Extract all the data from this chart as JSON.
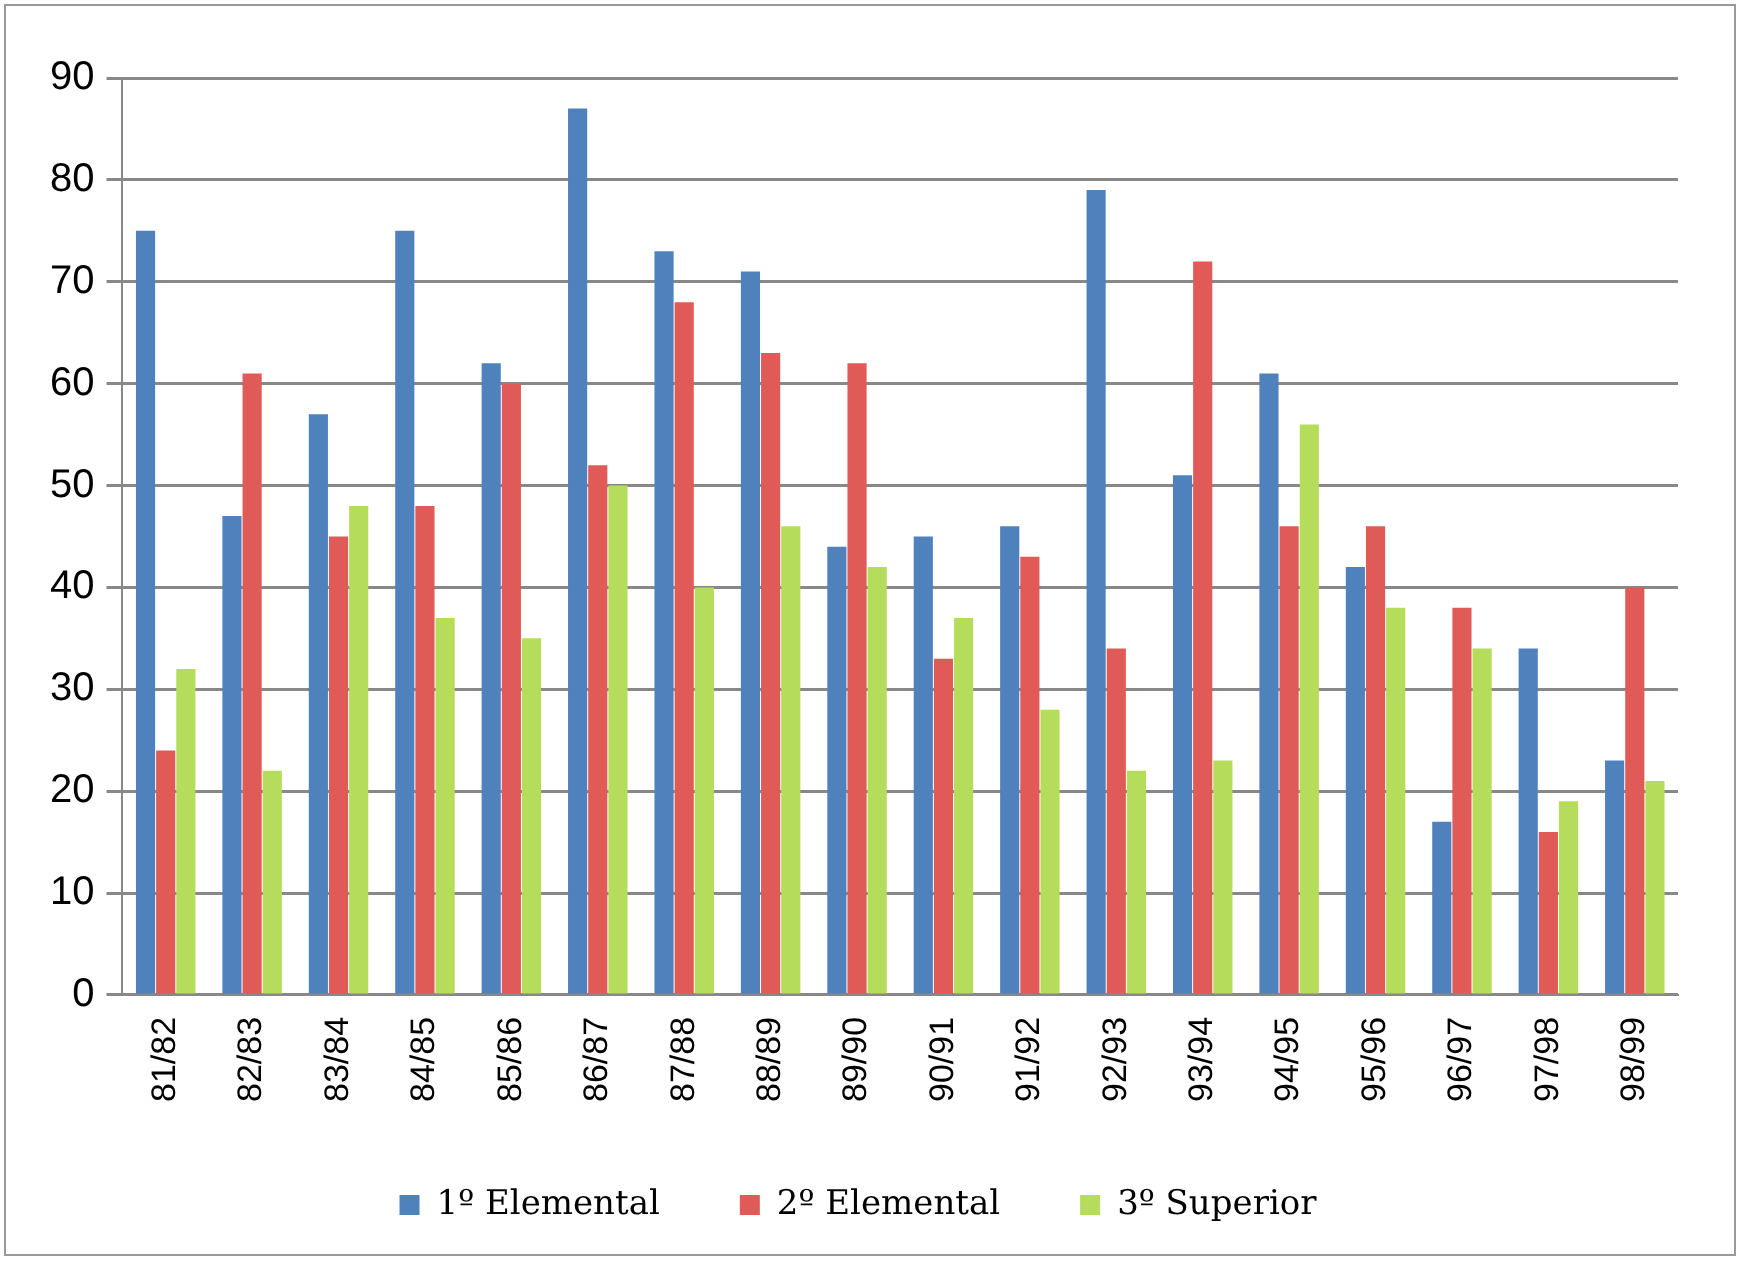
{
  "chart_data": {
    "type": "bar",
    "categories": [
      "81/82",
      "82/83",
      "83/84",
      "84/85",
      "85/86",
      "86/87",
      "87/88",
      "88/89",
      "89/90",
      "90/91",
      "91/92",
      "92/93",
      "93/94",
      "94/95",
      "95/96",
      "96/97",
      "97/98",
      "98/99"
    ],
    "series": [
      {
        "name": "1º Elemental",
        "color": "#4f81bd",
        "values": [
          75,
          47,
          57,
          75,
          62,
          87,
          73,
          71,
          44,
          45,
          46,
          79,
          51,
          61,
          42,
          17,
          34,
          23
        ]
      },
      {
        "name": "2º Elemental",
        "color": "#e05a57",
        "values": [
          24,
          61,
          45,
          48,
          60,
          52,
          68,
          63,
          62,
          33,
          43,
          34,
          72,
          46,
          46,
          38,
          16,
          40
        ]
      },
      {
        "name": "3º Superior",
        "color": "#b5dc5a",
        "values": [
          32,
          22,
          48,
          37,
          35,
          50,
          40,
          46,
          42,
          37,
          28,
          22,
          23,
          56,
          38,
          34,
          19,
          21
        ]
      }
    ],
    "ylim": [
      0,
      90
    ],
    "yticks": [
      0,
      10,
      20,
      30,
      40,
      50,
      60,
      70,
      80,
      90
    ],
    "grid": "y",
    "legend": "bottom"
  }
}
